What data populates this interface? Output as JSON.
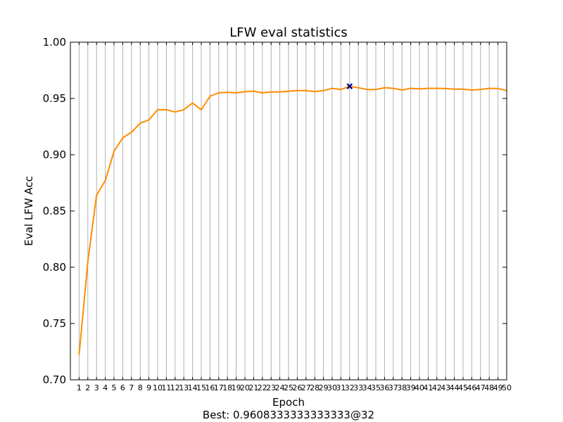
{
  "chart_data": {
    "type": "line",
    "title": "LFW eval statistics",
    "xlabel": "Epoch",
    "ylabel": "Eval LFW Acc",
    "ylim": [
      0.7,
      1.0
    ],
    "xlim": [
      0,
      50
    ],
    "yticks": [
      "0.70",
      "0.75",
      "0.80",
      "0.85",
      "0.90",
      "0.95",
      "1.00"
    ],
    "grid": "vertical-x-only",
    "series": [
      {
        "color": "#ff8c00",
        "x": [
          1,
          2,
          3,
          4,
          5,
          6,
          7,
          8,
          9,
          10,
          11,
          12,
          13,
          14,
          15,
          16,
          17,
          18,
          19,
          20,
          21,
          22,
          23,
          24,
          25,
          26,
          27,
          28,
          29,
          30,
          31,
          32,
          33,
          34,
          35,
          36,
          37,
          38,
          39,
          40,
          41,
          42,
          43,
          44,
          45,
          46,
          47,
          48,
          49,
          50
        ],
        "values": [
          0.722,
          0.805,
          0.864,
          0.877,
          0.903,
          0.915,
          0.92,
          0.928,
          0.931,
          0.94,
          0.94,
          0.938,
          0.94,
          0.946,
          0.94,
          0.952,
          0.955,
          0.9555,
          0.955,
          0.956,
          0.9565,
          0.955,
          0.9558,
          0.9558,
          0.9565,
          0.957,
          0.957,
          0.956,
          0.957,
          0.959,
          0.958,
          0.9608,
          0.9595,
          0.958,
          0.958,
          0.9595,
          0.959,
          0.9575,
          0.959,
          0.9585,
          0.959,
          0.959,
          0.9588,
          0.9583,
          0.9583,
          0.9575,
          0.958,
          0.959,
          0.9588,
          0.957
        ]
      }
    ],
    "best_marker": {
      "x": 32,
      "y": 0.9608333333333333,
      "color": "#00008b",
      "marker": "x"
    },
    "footer": "Best: 0.9608333333333333@32"
  }
}
